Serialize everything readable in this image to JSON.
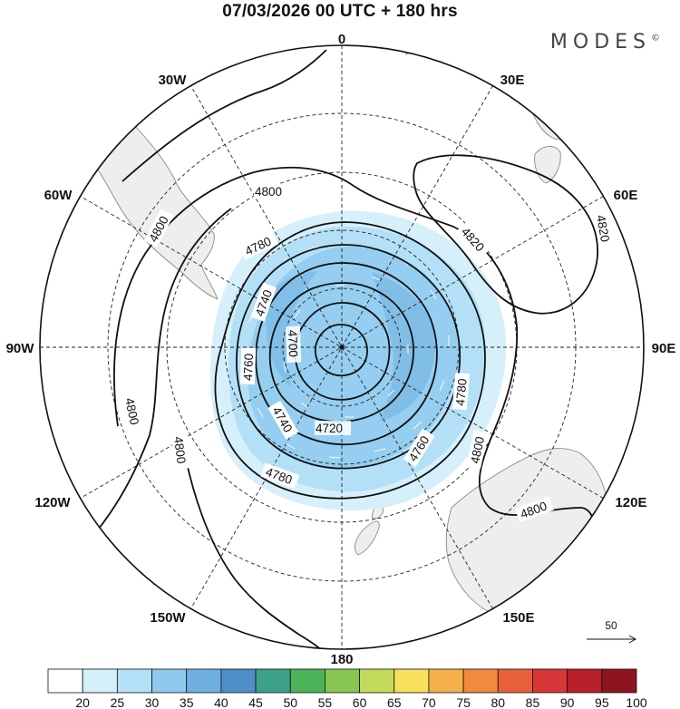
{
  "title": "07/03/2026  00 UTC  + 180 hrs",
  "brand": "MODES",
  "brand_mark": "©",
  "longitude_labels": [
    "0",
    "30E",
    "60E",
    "90E",
    "120E",
    "150E",
    "180",
    "150W",
    "120W",
    "90W",
    "60W",
    "30W"
  ],
  "contour_labels": [
    {
      "text": "4800",
      "level": 4800
    },
    {
      "text": "4800",
      "level": 4800
    },
    {
      "text": "4800",
      "level": 4800
    },
    {
      "text": "4800",
      "level": 4800
    },
    {
      "text": "4800",
      "level": 4800
    },
    {
      "text": "4800",
      "level": 4800
    },
    {
      "text": "4820",
      "level": 4820
    },
    {
      "text": "4820",
      "level": 4820
    },
    {
      "text": "4780",
      "level": 4780
    },
    {
      "text": "4780",
      "level": 4780
    },
    {
      "text": "4780",
      "level": 4780
    },
    {
      "text": "4760",
      "level": 4760
    },
    {
      "text": "4760",
      "level": 4760
    },
    {
      "text": "4740",
      "level": 4740
    },
    {
      "text": "4740",
      "level": 4740
    },
    {
      "text": "4720",
      "level": 4720
    },
    {
      "text": "4700",
      "level": 4700
    }
  ],
  "vector_reference": "50",
  "colorbar": {
    "ticks": [
      "20",
      "25",
      "30",
      "35",
      "40",
      "45",
      "50",
      "55",
      "60",
      "65",
      "70",
      "75",
      "80",
      "85",
      "90",
      "95",
      "100"
    ],
    "colors": [
      "#ffffff",
      "#d6f0fb",
      "#b4e0f7",
      "#8fcaee",
      "#6fb0e0",
      "#4f8fc8",
      "#3fa08a",
      "#4cb35a",
      "#86c651",
      "#c3db5a",
      "#f6e05c",
      "#f5b04c",
      "#f08a3e",
      "#e8603a",
      "#d9363a",
      "#b81f2b",
      "#8d1520"
    ]
  }
}
